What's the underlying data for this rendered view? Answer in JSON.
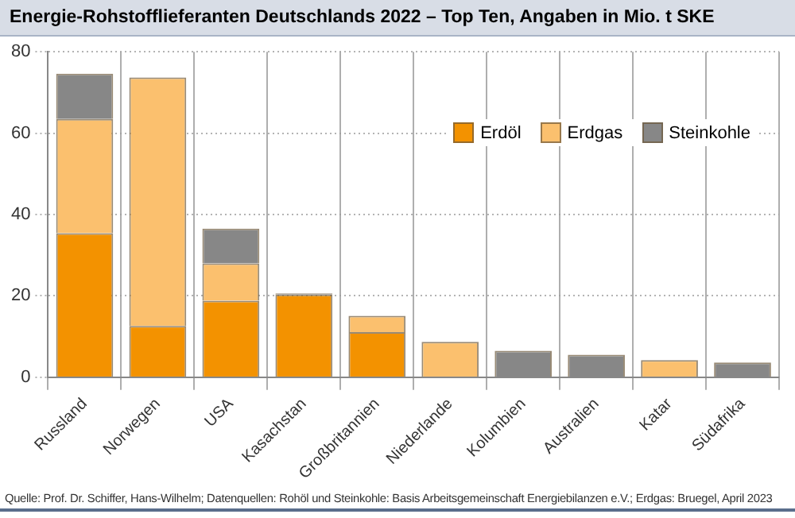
{
  "chart_data": {
    "type": "bar",
    "title": "Energie-Rohstofflieferanten Deutschlands 2022 – Top Ten, Angaben in Mio. t SKE",
    "categories": [
      "Russland",
      "Norwegen",
      "USA",
      "Kasachstan",
      "Großbritannien",
      "Niederlande",
      "Kolumbien",
      "Australien",
      "Katar",
      "Südafrika"
    ],
    "series": [
      {
        "name": "Erdöl",
        "color": "#f39200",
        "values": [
          35.4,
          12.6,
          18.8,
          20.3,
          11.1,
          null,
          null,
          null,
          null,
          null
        ]
      },
      {
        "name": "Erdgas",
        "color": "#fbc06e",
        "values": [
          28.1,
          61.1,
          9.2,
          null,
          4.0,
          8.7,
          null,
          null,
          4.2,
          null
        ]
      },
      {
        "name": "Steinkohle",
        "color": "#878787",
        "values": [
          11.1,
          null,
          8.5,
          0.3,
          null,
          null,
          6.5,
          5.5,
          null,
          3.6
        ]
      }
    ],
    "stacked": true,
    "ylim": [
      0,
      80
    ],
    "yticks": [
      0,
      20,
      40,
      60,
      80
    ],
    "grid": true,
    "legend": "top right",
    "annotations": [
      "Quelle: Prof. Dr. Schiffer, Hans-Wilhelm; Datenquellen: Rohöl und Steinkohle: Basis Arbeitsgemeinschaft Energiebilanzen e.V.; Erdgas: Bruegel, April 2023"
    ]
  }
}
